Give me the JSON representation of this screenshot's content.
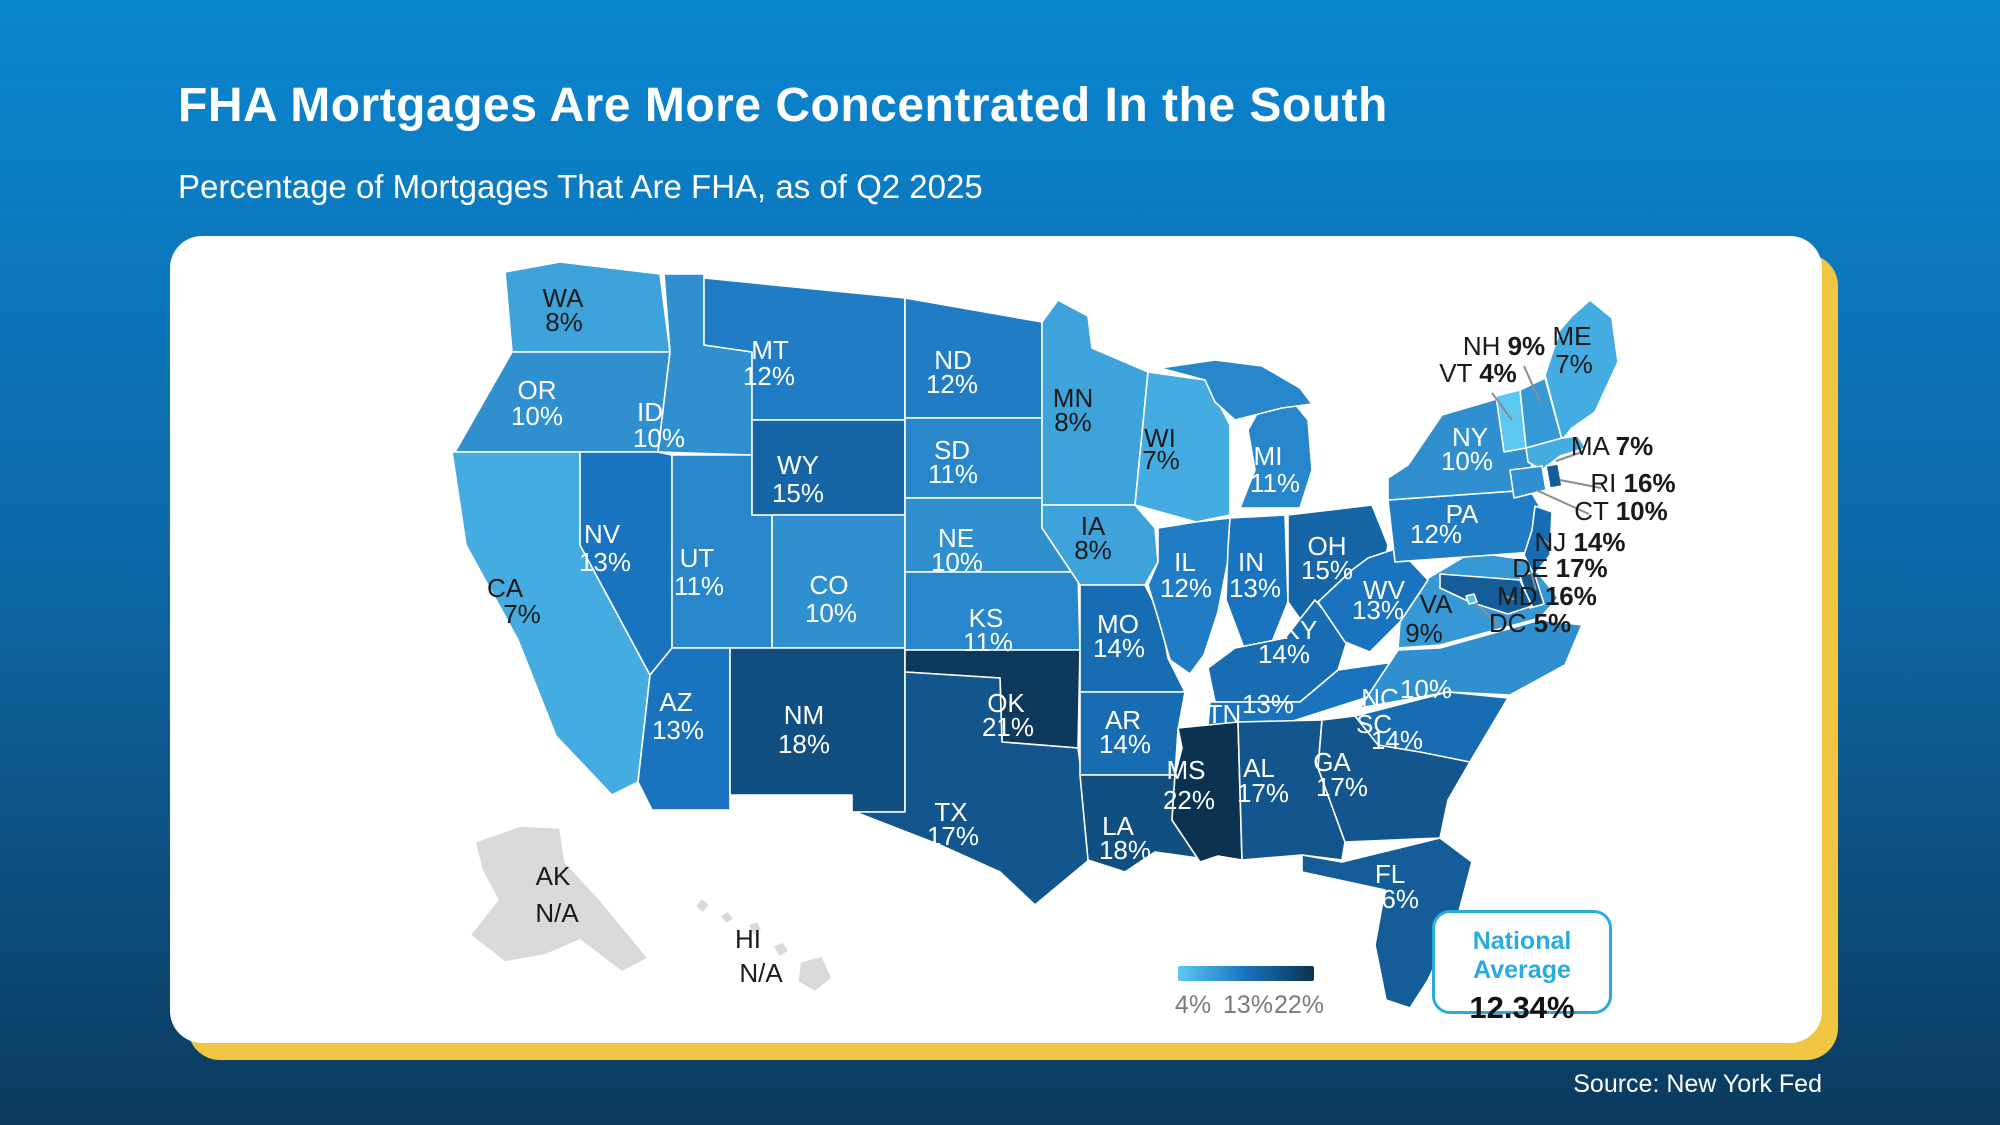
{
  "header": {
    "title": "FHA Mortgages Are More Concentrated In the South",
    "subtitle": "Percentage of Mortgages That Are FHA, as of Q2 2025"
  },
  "footer": {
    "source": "Source: New York Fed"
  },
  "legend": {
    "labels": [
      "4%",
      "13%",
      "22%"
    ],
    "stops": [
      {
        "value": 4,
        "color": "#5BC8F2"
      },
      {
        "value": 13,
        "color": "#1973BE"
      },
      {
        "value": 22,
        "color": "#0B3250"
      }
    ]
  },
  "national_average": {
    "label": "National Average",
    "value": "12.34%"
  },
  "colors": {
    "background_top": "#0a86d0",
    "background_bottom": "#0b3a5e",
    "card": "#ffffff",
    "card_shadow": "#F0C541",
    "na_state": "#d9d9d9",
    "label_dark": "#1a1a1a",
    "label_light": "#ffffff",
    "leader_line": "#8c8c8c",
    "accent": "#29ABE2",
    "legend_text": "#7a7a7a"
  },
  "chart_data": {
    "type": "heatmap",
    "variant": "us-state-choropleth",
    "title": "FHA Mortgages Are More Concentrated In the South",
    "subtitle": "Percentage of Mortgages That Are FHA, as of Q2 2025",
    "units": "percent of mortgages that are FHA",
    "as_of": "Q2 2025",
    "source": "New York Fed",
    "legend_range": [
      4,
      22
    ],
    "national_average": 12.34,
    "states": [
      {
        "code": "WA",
        "value": 8,
        "label": "8%"
      },
      {
        "code": "OR",
        "value": 10,
        "label": "10%"
      },
      {
        "code": "CA",
        "value": 7,
        "label": "7%"
      },
      {
        "code": "NV",
        "value": 13,
        "label": "13%"
      },
      {
        "code": "ID",
        "value": 10,
        "label": "10%"
      },
      {
        "code": "UT",
        "value": 11,
        "label": "11%"
      },
      {
        "code": "AZ",
        "value": 13,
        "label": "13%"
      },
      {
        "code": "MT",
        "value": 12,
        "label": "12%"
      },
      {
        "code": "WY",
        "value": 15,
        "label": "15%"
      },
      {
        "code": "CO",
        "value": 10,
        "label": "10%"
      },
      {
        "code": "NM",
        "value": 18,
        "label": "18%"
      },
      {
        "code": "ND",
        "value": 12,
        "label": "12%"
      },
      {
        "code": "SD",
        "value": 11,
        "label": "11%"
      },
      {
        "code": "NE",
        "value": 10,
        "label": "10%"
      },
      {
        "code": "KS",
        "value": 11,
        "label": "11%"
      },
      {
        "code": "OK",
        "value": 21,
        "label": "21%"
      },
      {
        "code": "TX",
        "value": 17,
        "label": "17%"
      },
      {
        "code": "MN",
        "value": 8,
        "label": "8%"
      },
      {
        "code": "IA",
        "value": 8,
        "label": "8%"
      },
      {
        "code": "MO",
        "value": 14,
        "label": "14%"
      },
      {
        "code": "AR",
        "value": 14,
        "label": "14%"
      },
      {
        "code": "LA",
        "value": 18,
        "label": "18%"
      },
      {
        "code": "WI",
        "value": 7,
        "label": "7%"
      },
      {
        "code": "IL",
        "value": 12,
        "label": "12%"
      },
      {
        "code": "IN",
        "value": 13,
        "label": "13%"
      },
      {
        "code": "MI",
        "value": 11,
        "label": "11%"
      },
      {
        "code": "OH",
        "value": 15,
        "label": "15%"
      },
      {
        "code": "KY",
        "value": 14,
        "label": "14%"
      },
      {
        "code": "TN",
        "value": 13,
        "label": "13%"
      },
      {
        "code": "MS",
        "value": 22,
        "label": "22%"
      },
      {
        "code": "AL",
        "value": 17,
        "label": "17%"
      },
      {
        "code": "GA",
        "value": 17,
        "label": "17%"
      },
      {
        "code": "FL",
        "value": 16,
        "label": "16%"
      },
      {
        "code": "SC",
        "value": 14,
        "label": "14%"
      },
      {
        "code": "NC",
        "value": 10,
        "label": "10%"
      },
      {
        "code": "VA",
        "value": 9,
        "label": "9%"
      },
      {
        "code": "WV",
        "value": 13,
        "label": "13%"
      },
      {
        "code": "PA",
        "value": 12,
        "label": "12%"
      },
      {
        "code": "NY",
        "value": 10,
        "label": "10%"
      },
      {
        "code": "ME",
        "value": 7,
        "label": "7%"
      },
      {
        "code": "NH",
        "value": 9,
        "label": "9%"
      },
      {
        "code": "VT",
        "value": 4,
        "label": "4%"
      },
      {
        "code": "MA",
        "value": 7,
        "label": "7%"
      },
      {
        "code": "RI",
        "value": 16,
        "label": "16%"
      },
      {
        "code": "CT",
        "value": 10,
        "label": "10%"
      },
      {
        "code": "NJ",
        "value": 14,
        "label": "14%"
      },
      {
        "code": "DE",
        "value": 17,
        "label": "17%"
      },
      {
        "code": "MD",
        "value": 16,
        "label": "16%"
      },
      {
        "code": "DC",
        "value": 5,
        "label": "5%"
      },
      {
        "code": "AK",
        "value": null,
        "label": "N/A"
      },
      {
        "code": "HI",
        "value": null,
        "label": "N/A"
      }
    ]
  }
}
